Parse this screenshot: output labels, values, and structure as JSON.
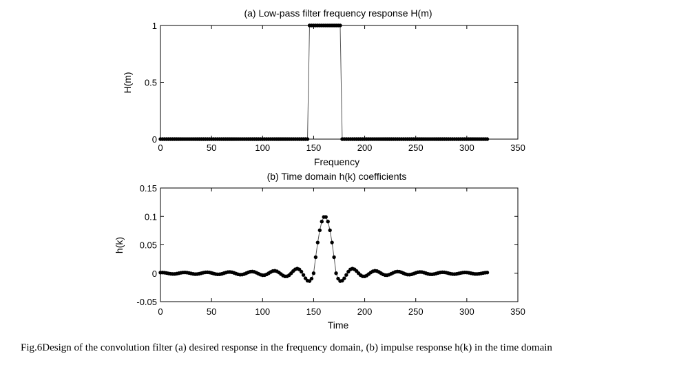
{
  "chart_data": [
    {
      "type": "line",
      "title": "(a) Low-pass filter frequency response H(m)",
      "xlabel": "Frequency",
      "ylabel": "H(m)",
      "xlim": [
        0,
        350
      ],
      "ylim": [
        0,
        1
      ],
      "xticks": [
        0,
        50,
        100,
        150,
        200,
        250,
        300,
        350
      ],
      "yticks": [
        0,
        0.5,
        1
      ],
      "xtick_labels": [
        "0",
        "50",
        "100",
        "150",
        "200",
        "250",
        "300",
        "350"
      ],
      "ytick_labels": [
        "0",
        "0.5",
        "1"
      ],
      "marker": "filled-circle",
      "series": [
        {
          "name": "H(m)",
          "x_start": 0,
          "x_end": 320,
          "step": 2,
          "passband": [
            146,
            176
          ],
          "passband_value": 1,
          "stopband_value": 0
        }
      ]
    },
    {
      "type": "line",
      "title": "(b) Time domain h(k) coefficients",
      "xlabel": "Time",
      "ylabel": "h(k)",
      "xlim": [
        0,
        350
      ],
      "ylim": [
        -0.05,
        0.15
      ],
      "xticks": [
        0,
        50,
        100,
        150,
        200,
        250,
        300,
        350
      ],
      "yticks": [
        -0.05,
        0,
        0.05,
        0.1,
        0.15
      ],
      "xtick_labels": [
        "0",
        "50",
        "100",
        "150",
        "200",
        "250",
        "300",
        "350"
      ],
      "ytick_labels": [
        "-0.05",
        "0",
        "0.05",
        "0.1",
        "0.15"
      ],
      "marker": "filled-circle",
      "series": [
        {
          "name": "h(k)",
          "x_start": 0,
          "x_end": 320,
          "step": 2,
          "center": 161,
          "peak": 0.1,
          "main_lobe_halfwidth": 11,
          "first_sidelobe_min": -0.021,
          "first_sidelobe_max": 0.013,
          "oscillation_period": 22
        }
      ]
    }
  ],
  "caption": "Fig.6Design of the convolution filter (a) desired response in the frequency domain,  (b) impulse response h(k) in the time domain"
}
